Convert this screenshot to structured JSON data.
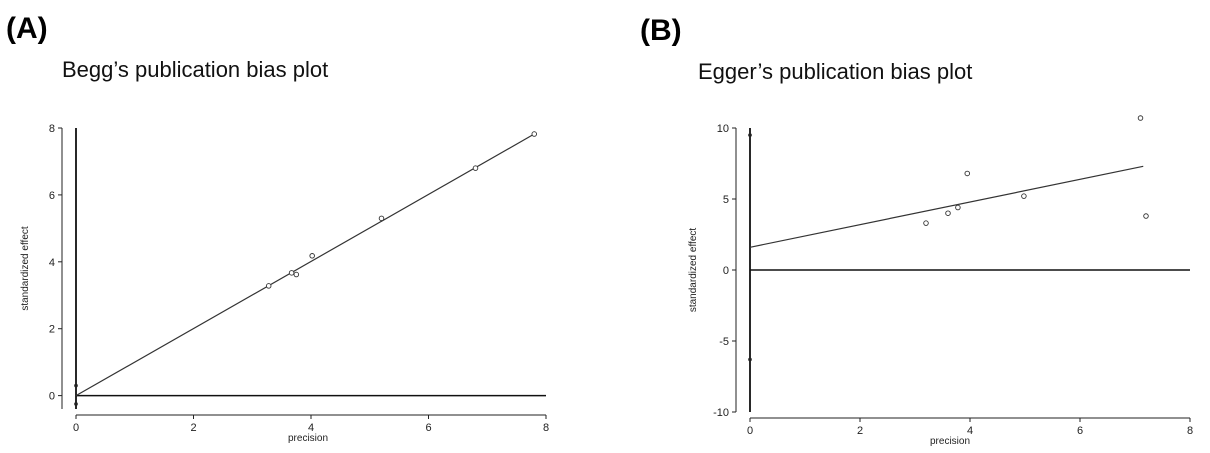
{
  "panels": {
    "a": {
      "letter": "(A)",
      "title": "Begg’s publication bias plot"
    },
    "b": {
      "letter": "(B)",
      "title": "Egger’s publication bias plot"
    }
  },
  "chart_data": [
    {
      "type": "scatter",
      "title": "Begg’s publication bias plot",
      "xlabel": "precision",
      "ylabel": "standardized effect",
      "xlim": [
        0,
        8
      ],
      "ylim": [
        -0.4,
        8
      ],
      "xticks": [
        "0",
        "2",
        "4",
        "6",
        "8"
      ],
      "yticks": [
        "0",
        "2",
        "4",
        "6",
        "8"
      ],
      "points": [
        {
          "x": 3.28,
          "y": 3.28
        },
        {
          "x": 3.67,
          "y": 3.67
        },
        {
          "x": 3.75,
          "y": 3.62
        },
        {
          "x": 4.02,
          "y": 4.18
        },
        {
          "x": 5.2,
          "y": 5.3
        },
        {
          "x": 6.8,
          "y": 6.8
        },
        {
          "x": 7.8,
          "y": 7.82
        }
      ],
      "fit_line": {
        "x": [
          0,
          7.8
        ],
        "y": [
          0,
          7.82
        ]
      },
      "intercept_marks": [
        0.3,
        -0.25
      ],
      "grid": false
    },
    {
      "type": "scatter",
      "title": "Egger’s publication bias plot",
      "xlabel": "precision",
      "ylabel": "standardized effect",
      "xlim": [
        0,
        8
      ],
      "ylim": [
        -10,
        10
      ],
      "xticks": [
        "0",
        "2",
        "4",
        "6",
        "8"
      ],
      "yticks": [
        "-10",
        "-5",
        "0",
        "5",
        "10"
      ],
      "points": [
        {
          "x": 3.2,
          "y": 3.3
        },
        {
          "x": 3.6,
          "y": 4.0
        },
        {
          "x": 3.78,
          "y": 4.4
        },
        {
          "x": 3.95,
          "y": 6.8
        },
        {
          "x": 4.98,
          "y": 5.2
        },
        {
          "x": 7.1,
          "y": 10.7
        },
        {
          "x": 7.2,
          "y": 3.8
        }
      ],
      "fit_line": {
        "x": [
          0,
          7.15
        ],
        "y": [
          1.6,
          7.3
        ]
      },
      "intercept_marks": [
        9.5,
        -6.3
      ],
      "grid": false
    }
  ]
}
